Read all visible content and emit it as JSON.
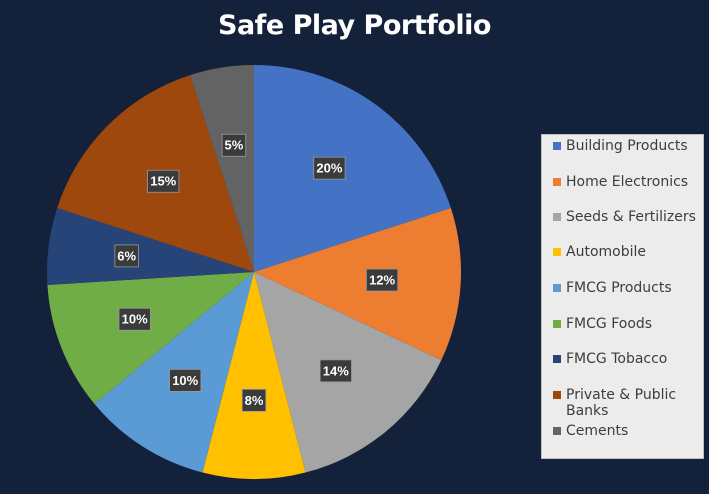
{
  "chart_data": {
    "type": "pie",
    "title": "Safe Play Portfolio",
    "legend_position": "right",
    "slices": [
      {
        "name": "Building Products",
        "value": 20,
        "label": "20%",
        "color": "#4472c4"
      },
      {
        "name": "Home Electronics",
        "value": 12,
        "label": "12%",
        "color": "#ed7d31"
      },
      {
        "name": "Seeds & Fertilizers",
        "value": 14,
        "label": "14%",
        "color": "#a5a5a5"
      },
      {
        "name": "Automobile",
        "value": 8,
        "label": "8%",
        "color": "#ffc000"
      },
      {
        "name": "FMCG Products",
        "value": 10,
        "label": "10%",
        "color": "#5b9bd5"
      },
      {
        "name": "FMCG Foods",
        "value": 10,
        "label": "10%",
        "color": "#70ad47"
      },
      {
        "name": "FMCG Tobacco",
        "value": 6,
        "label": "6%",
        "color": "#264478"
      },
      {
        "name": "Private & Public Banks",
        "value": 15,
        "label": "15%",
        "color": "#9e480e"
      },
      {
        "name": "Cements",
        "value": 5,
        "label": "5%",
        "color": "#636363"
      }
    ]
  }
}
